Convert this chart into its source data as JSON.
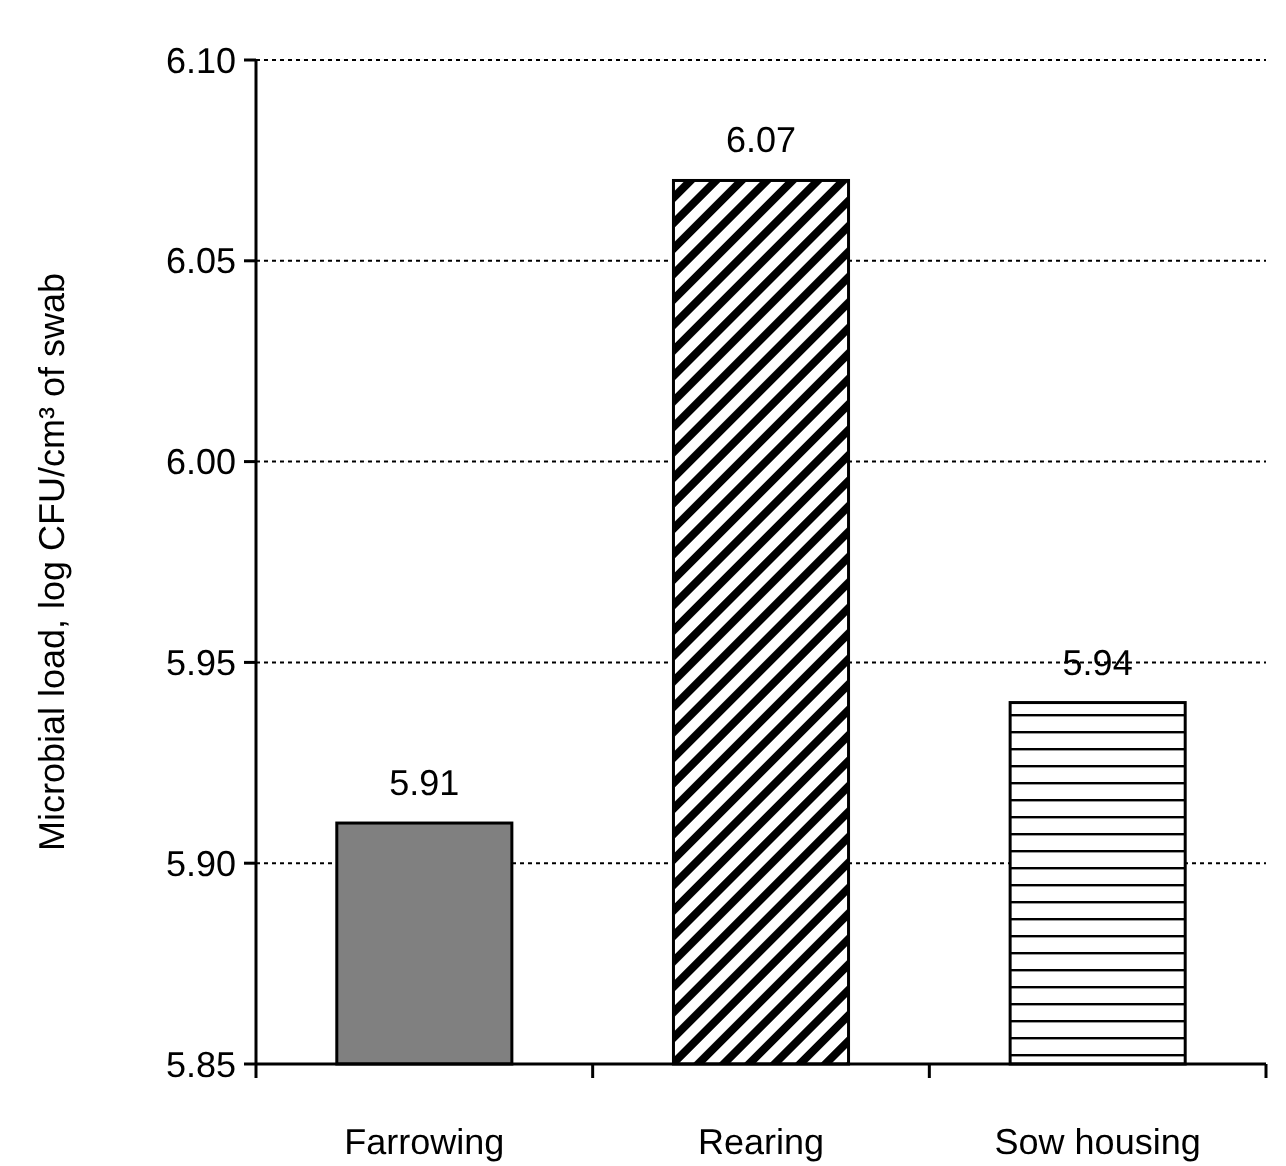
{
  "chart_data": {
    "type": "bar",
    "ylabel": "Microbial load, log CFU/cm³ of swab",
    "categories": [
      "Farrowing",
      "Rearing",
      "Sow housing"
    ],
    "values": [
      5.91,
      6.07,
      5.94
    ],
    "colors": [
      "#808080",
      "#000000",
      "#000000"
    ],
    "ylim": [
      5.85,
      6.1
    ],
    "yticks": [
      {
        "value": 5.85,
        "label": "5.85"
      },
      {
        "value": 5.9,
        "label": "5.90"
      },
      {
        "value": 5.95,
        "label": "5.95"
      },
      {
        "value": 6.0,
        "label": "6.00"
      },
      {
        "value": 6.05,
        "label": "6.05"
      },
      {
        "value": 6.1,
        "label": "6.10"
      }
    ],
    "grid": "y",
    "data_labels": true
  }
}
